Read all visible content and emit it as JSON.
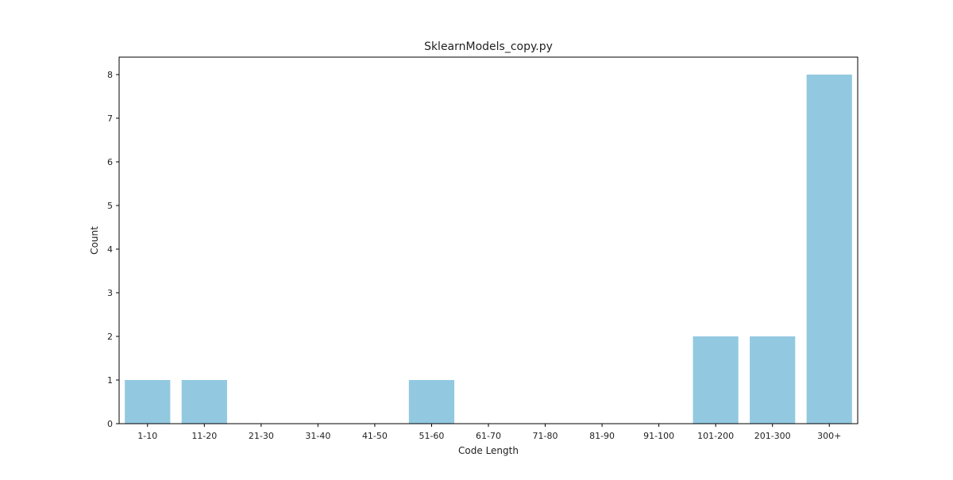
{
  "chart_data": {
    "type": "bar",
    "title": "SklearnModels_copy.py",
    "xlabel": "Code Length",
    "ylabel": "Count",
    "categories": [
      "1-10",
      "11-20",
      "21-30",
      "31-40",
      "41-50",
      "51-60",
      "61-70",
      "71-80",
      "81-90",
      "91-100",
      "101-200",
      "201-300",
      "300+"
    ],
    "values": [
      1,
      1,
      0,
      0,
      0,
      1,
      0,
      0,
      0,
      0,
      2,
      2,
      8
    ],
    "ylim": [
      0,
      8.4
    ],
    "yticks": [
      0,
      1,
      2,
      3,
      4,
      5,
      6,
      7,
      8
    ],
    "grid": false,
    "bar_color": "#92c9e0",
    "frame_color": "#000000"
  }
}
